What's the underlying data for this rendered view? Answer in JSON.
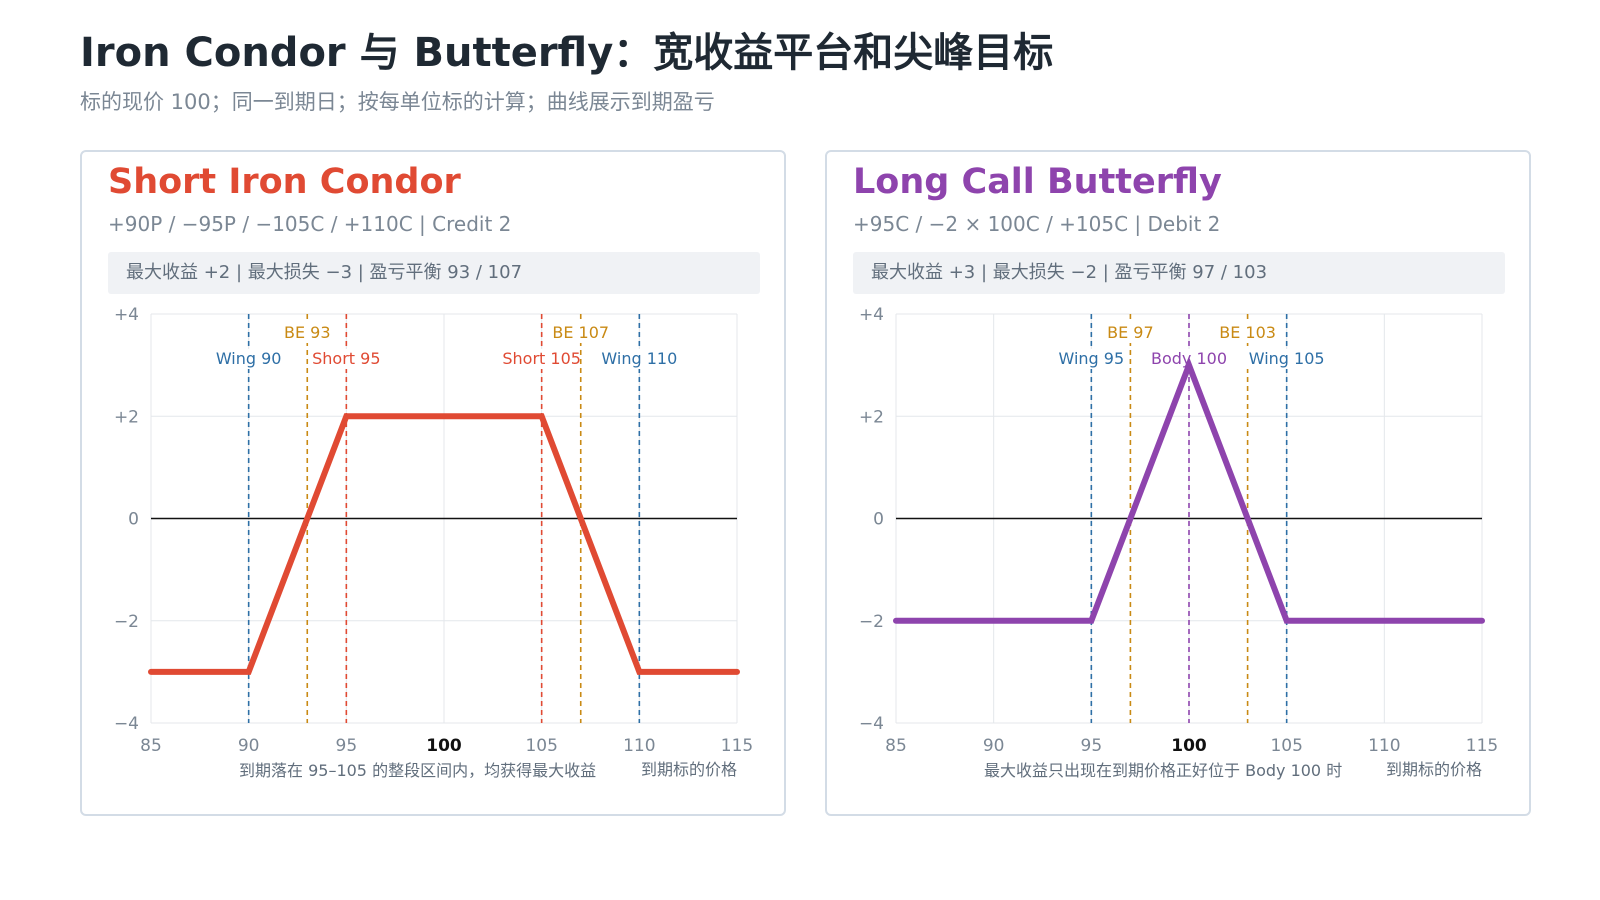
{
  "header": {
    "title": "Iron Condor 与 Butterfly：宽收益平台和尖峰目标",
    "subtitle": "标的现价 100；同一到期日；按每单位标的计算；曲线展示到期盈亏"
  },
  "colors": {
    "condor": "#e04a33",
    "butterfly": "#8e44ad",
    "wing": "#2e6fa6",
    "breakeven": "#c98a14",
    "grid": "#e4e7eb",
    "zero_line": "#111111",
    "axis_text": "#7b8794"
  },
  "panels": [
    {
      "title": "Short Iron Condor",
      "legs": "+90P / −95P / −105C / +110C | Credit 2",
      "stats": "最大收益 +2 | 最大损失 −3 | 盈亏平衡 93 / 107",
      "color": "#e04a33",
      "chart_data": {
        "type": "line",
        "xlim": [
          85,
          115
        ],
        "ylim": [
          -4,
          4
        ],
        "x_ticks": [
          85,
          90,
          95,
          100,
          105,
          110,
          115
        ],
        "x_tick_labels": [
          "85",
          "90",
          "95",
          "100",
          "105",
          "110",
          "115"
        ],
        "y_ticks": [
          -4,
          -2,
          0,
          2,
          4
        ],
        "y_tick_labels": [
          "−4",
          "−2",
          "0",
          "+2",
          "+4"
        ],
        "grid": true,
        "series": [
          {
            "x": [
              85,
              90,
              95,
              105,
              110,
              115
            ],
            "y": [
              -3,
              -3,
              2,
              2,
              -3,
              -3
            ]
          }
        ],
        "markers": [
          {
            "x": 90,
            "label": "Wing 90",
            "kind": "wing",
            "row": 2
          },
          {
            "x": 93,
            "label": "BE 93",
            "kind": "breakeven",
            "row": 1
          },
          {
            "x": 95,
            "label": "Short 95",
            "kind": "strike",
            "row": 2
          },
          {
            "x": 105,
            "label": "Short 105",
            "kind": "strike",
            "row": 2
          },
          {
            "x": 107,
            "label": "BE 107",
            "kind": "breakeven",
            "row": 1
          },
          {
            "x": 110,
            "label": "Wing 110",
            "kind": "wing",
            "row": 2
          }
        ],
        "note": "到期落在 95–105 的整段区间内，均获得最大收益",
        "xlabel": "到期标的价格"
      }
    },
    {
      "title": "Long Call Butterfly",
      "legs": "+95C / −2 × 100C / +105C | Debit 2",
      "stats": "最大收益 +3 | 最大损失 −2 | 盈亏平衡 97 / 103",
      "color": "#8e44ad",
      "chart_data": {
        "type": "line",
        "xlim": [
          85,
          115
        ],
        "ylim": [
          -4,
          4
        ],
        "x_ticks": [
          85,
          90,
          95,
          100,
          105,
          110,
          115
        ],
        "x_tick_labels": [
          "85",
          "90",
          "95",
          "100",
          "105",
          "110",
          "115"
        ],
        "y_ticks": [
          -4,
          -2,
          0,
          2,
          4
        ],
        "y_tick_labels": [
          "−4",
          "−2",
          "0",
          "+2",
          "+4"
        ],
        "grid": true,
        "series": [
          {
            "x": [
              85,
              95,
              100,
              105,
              115
            ],
            "y": [
              -2,
              -2,
              3,
              -2,
              -2
            ]
          }
        ],
        "markers": [
          {
            "x": 95,
            "label": "Wing 95",
            "kind": "wing",
            "row": 2
          },
          {
            "x": 97,
            "label": "BE 97",
            "kind": "breakeven",
            "row": 1
          },
          {
            "x": 100,
            "label": "Body 100",
            "kind": "strike",
            "row": 2
          },
          {
            "x": 103,
            "label": "BE 103",
            "kind": "breakeven",
            "row": 1
          },
          {
            "x": 105,
            "label": "Wing 105",
            "kind": "wing",
            "row": 2
          }
        ],
        "note": "最大收益只出现在到期价格正好位于 Body 100 时",
        "xlabel": "到期标的价格"
      }
    }
  ]
}
